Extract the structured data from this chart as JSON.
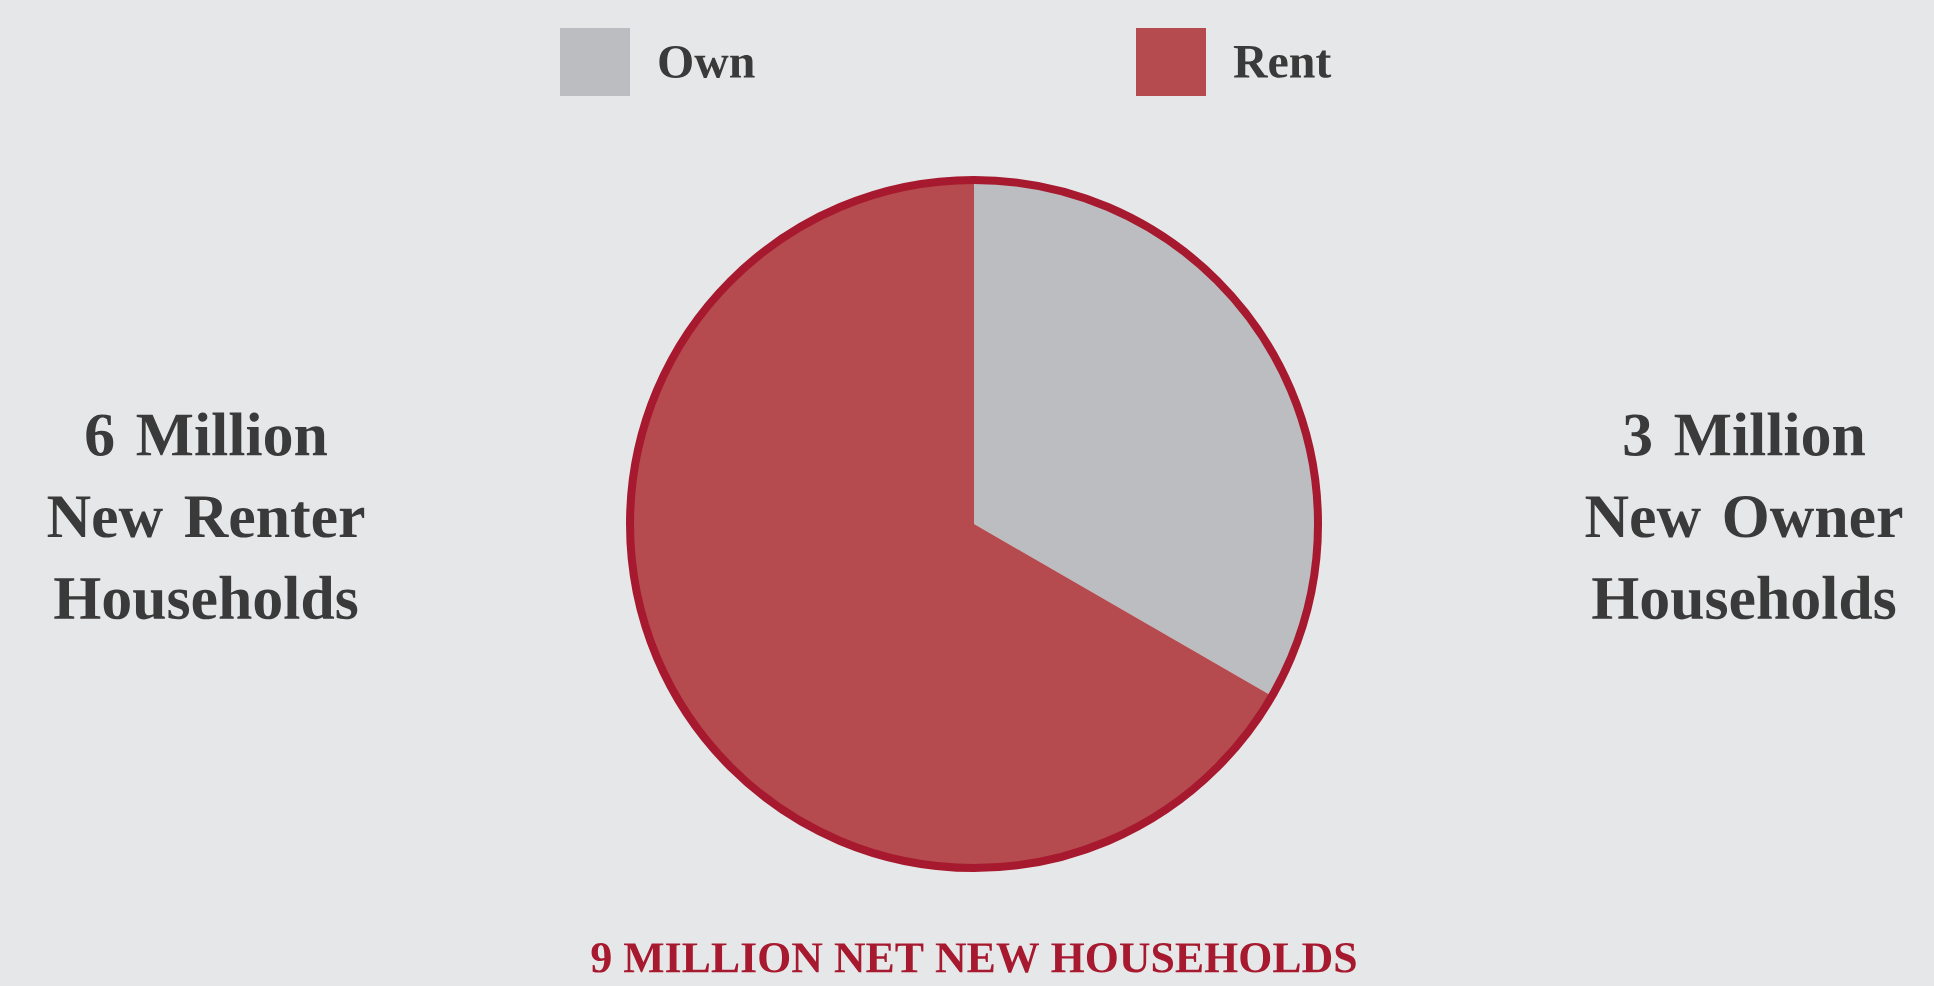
{
  "chart_data": {
    "type": "pie",
    "title": "9 MILLION NET NEW HOUSEHOLDS",
    "categories": [
      "Own",
      "Rent"
    ],
    "values": [
      3,
      6
    ],
    "colors": [
      "#bcbdc1",
      "#b54b4f"
    ],
    "value_labels": [
      "3 Million New Owner Households",
      "6 Million New Renter Households"
    ],
    "legend": "top"
  }
}
